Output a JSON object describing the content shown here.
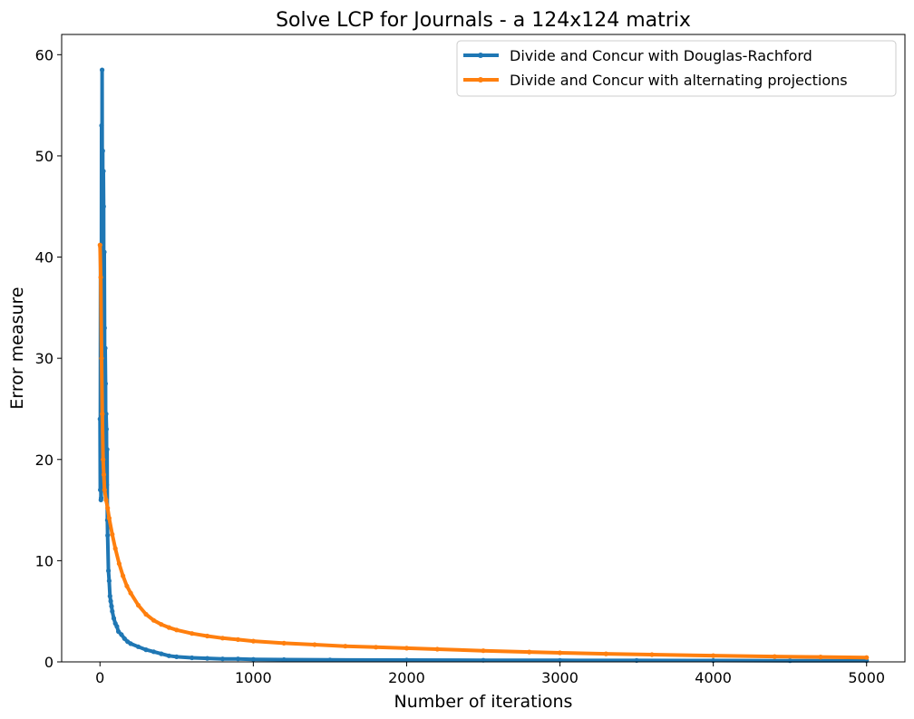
{
  "chart_data": {
    "type": "line",
    "title": "Solve LCP for Journals - a 124x124 matrix",
    "xlabel": "Number of iterations",
    "ylabel": "Error measure",
    "xlim": [
      -250,
      5250
    ],
    "ylim": [
      0,
      62
    ],
    "xticks": [
      0,
      1000,
      2000,
      3000,
      4000,
      5000
    ],
    "yticks": [
      0,
      10,
      20,
      30,
      40,
      50,
      60
    ],
    "grid": false,
    "legend_position": "top-right",
    "series": [
      {
        "name": "Divide and Concur with Douglas-Rachford",
        "color": "#1f77b4",
        "x": [
          0,
          2,
          4,
          6,
          8,
          10,
          12,
          14,
          16,
          18,
          20,
          22,
          24,
          26,
          28,
          30,
          32,
          34,
          36,
          38,
          40,
          42,
          44,
          46,
          48,
          50,
          55,
          60,
          65,
          70,
          75,
          80,
          90,
          100,
          110,
          120,
          140,
          160,
          180,
          200,
          250,
          300,
          350,
          400,
          450,
          500,
          600,
          700,
          800,
          900,
          1000,
          1200,
          1500,
          2000,
          2500,
          3000,
          3500,
          4000,
          4500,
          5000
        ],
        "y": [
          24.0,
          17.0,
          41.0,
          16.0,
          16.2,
          53.0,
          20.0,
          58.5,
          30.0,
          50.5,
          22.0,
          48.5,
          45.0,
          19.0,
          40.5,
          33.0,
          20.0,
          31.0,
          27.5,
          18.5,
          24.5,
          23.0,
          17.5,
          21.0,
          14.0,
          12.5,
          9.0,
          8.0,
          6.5,
          6.0,
          5.5,
          5.0,
          4.3,
          3.8,
          3.5,
          3.0,
          2.7,
          2.3,
          2.0,
          1.8,
          1.5,
          1.2,
          1.0,
          0.8,
          0.6,
          0.5,
          0.4,
          0.35,
          0.3,
          0.3,
          0.25,
          0.22,
          0.2,
          0.18,
          0.16,
          0.15,
          0.14,
          0.13,
          0.12,
          0.12
        ]
      },
      {
        "name": "Divide and Concur with alternating projections",
        "color": "#ff7f0e",
        "x": [
          0,
          5,
          10,
          15,
          20,
          25,
          30,
          40,
          50,
          60,
          80,
          100,
          125,
          150,
          175,
          200,
          250,
          300,
          350,
          400,
          450,
          500,
          600,
          700,
          800,
          900,
          1000,
          1200,
          1400,
          1600,
          1800,
          2000,
          2200,
          2500,
          2800,
          3000,
          3300,
          3600,
          4000,
          4400,
          4700,
          5000
        ],
        "y": [
          41.2,
          38.0,
          30.0,
          24.5,
          20.0,
          18.5,
          17.0,
          16.0,
          15.2,
          14.2,
          12.6,
          11.2,
          9.7,
          8.5,
          7.5,
          6.8,
          5.6,
          4.7,
          4.1,
          3.7,
          3.4,
          3.15,
          2.8,
          2.55,
          2.35,
          2.2,
          2.05,
          1.85,
          1.7,
          1.55,
          1.45,
          1.35,
          1.25,
          1.1,
          0.98,
          0.9,
          0.8,
          0.72,
          0.62,
          0.53,
          0.48,
          0.43
        ]
      }
    ]
  }
}
